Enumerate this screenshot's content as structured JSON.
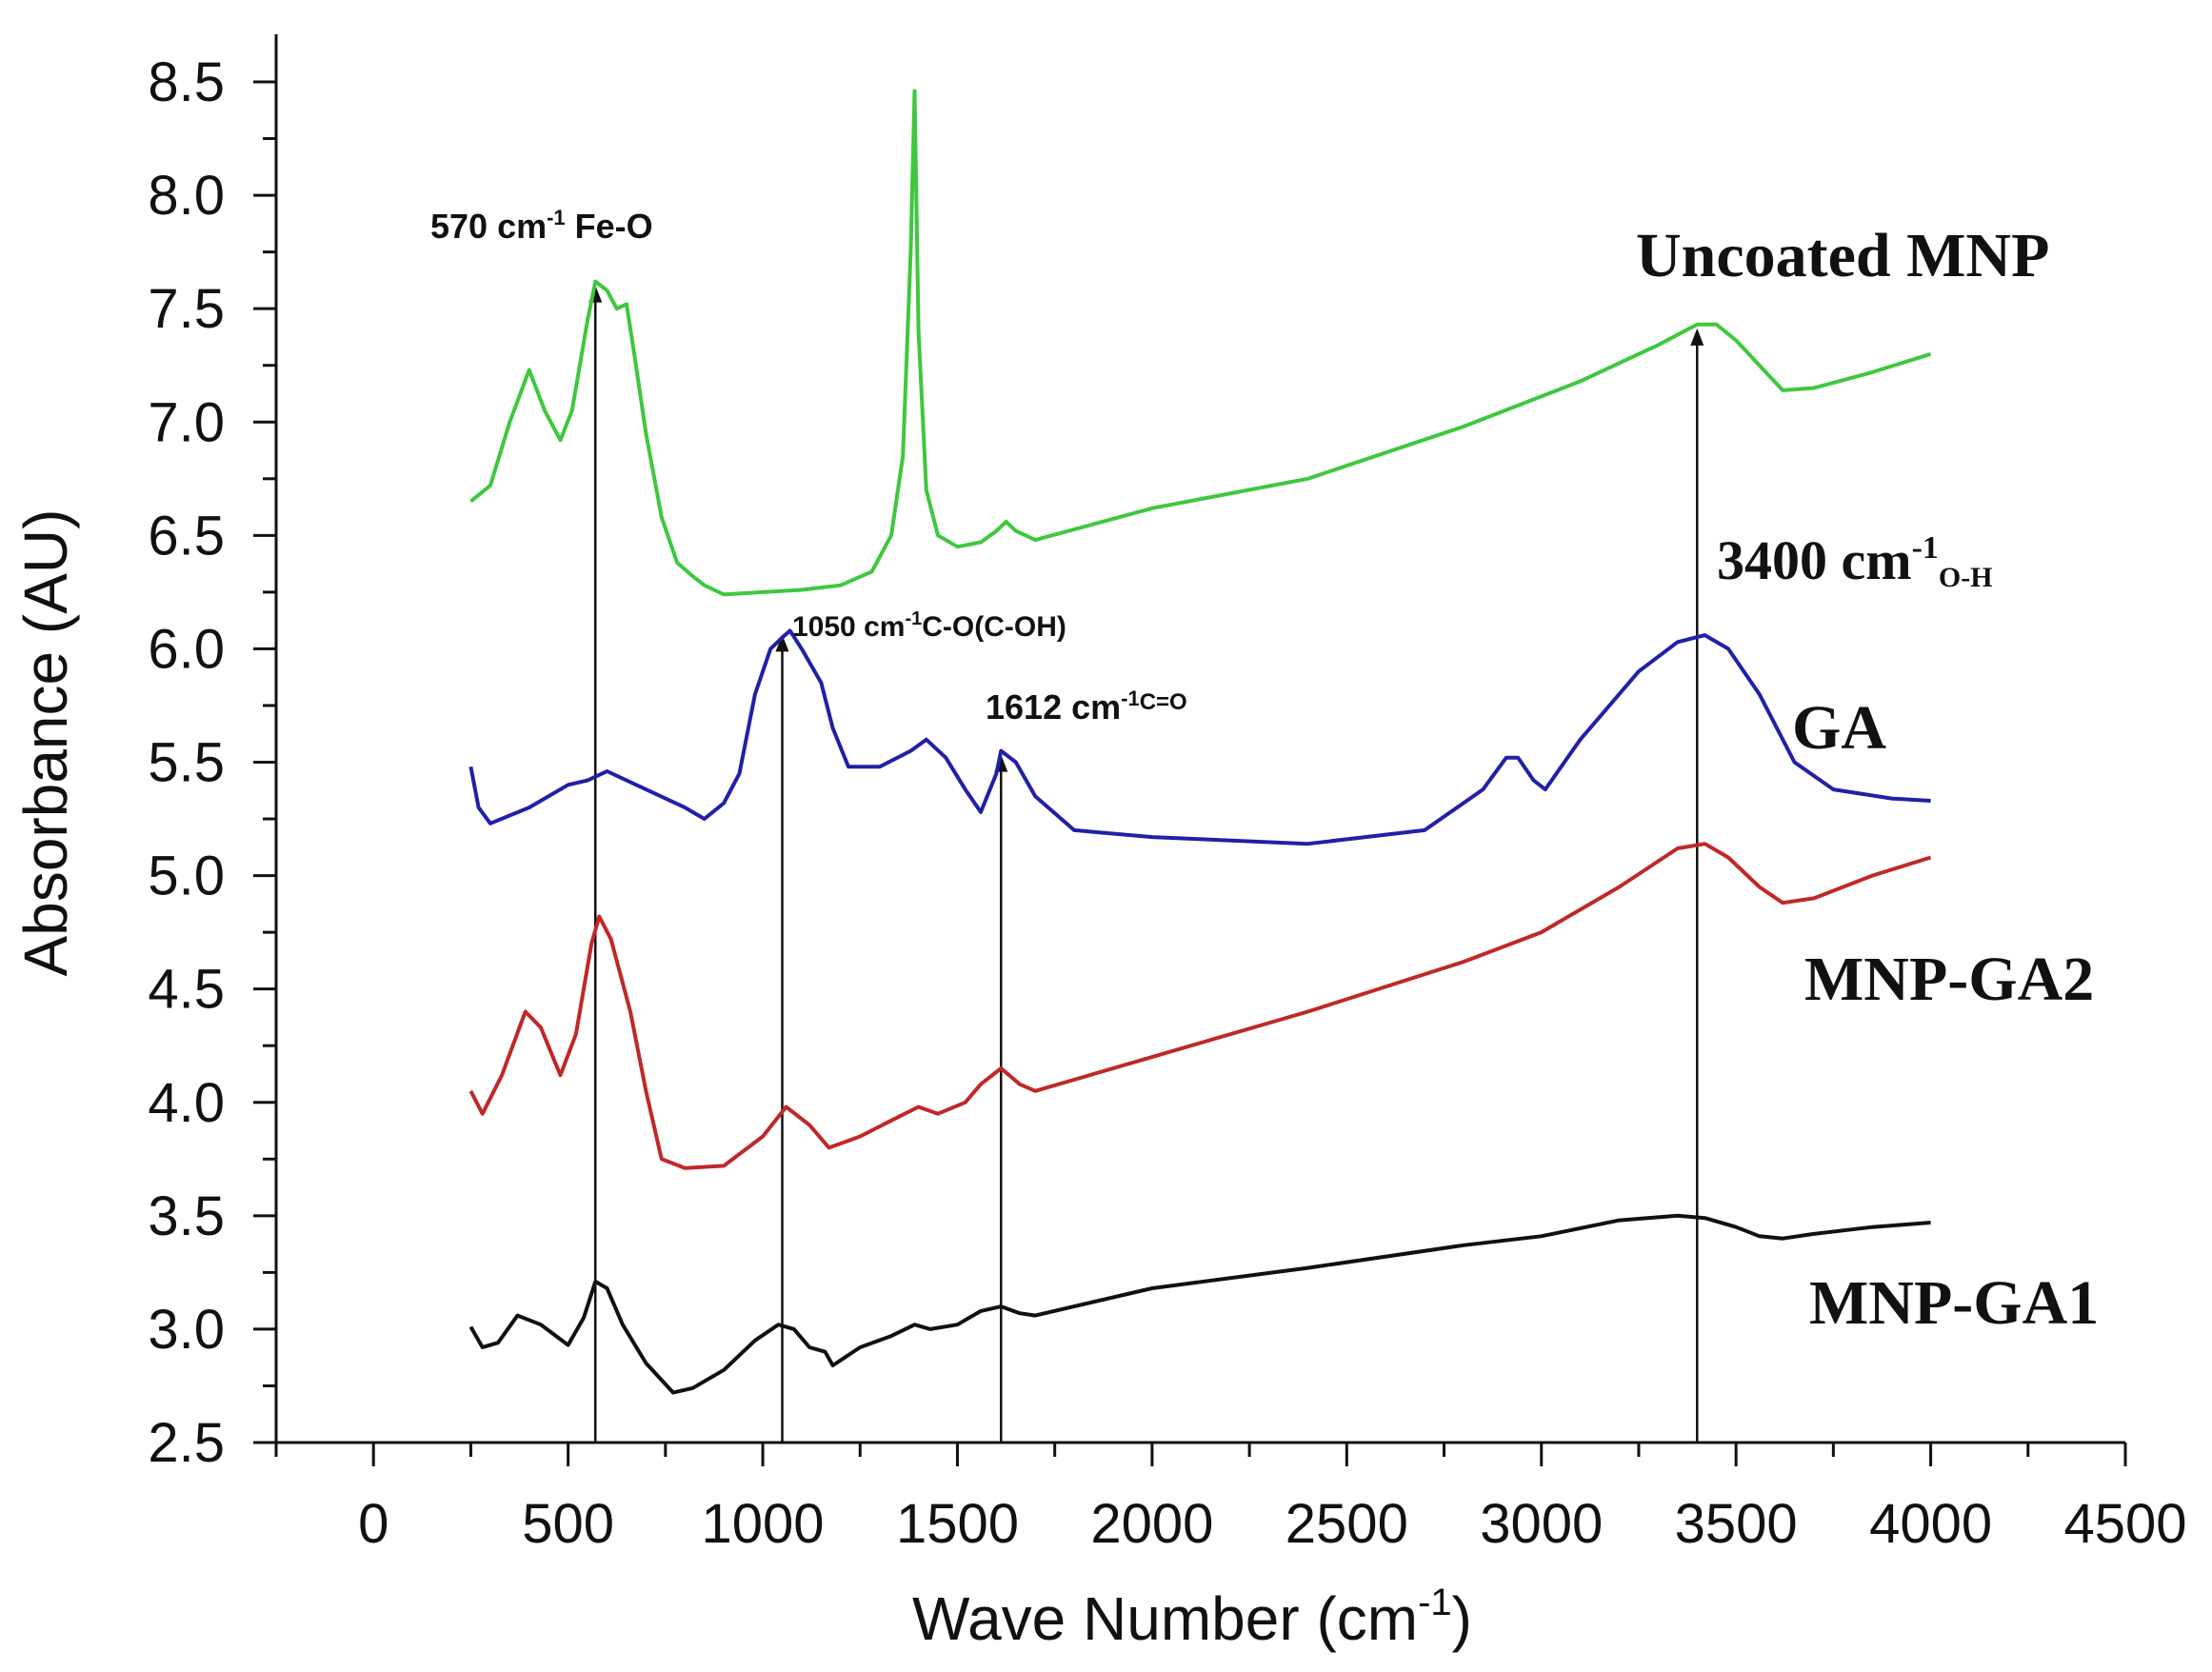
{
  "chart_data": {
    "type": "line",
    "xlabel": "Wave Number (cm",
    "xlabel_sup": "-1",
    "xlabel_end": ")",
    "ylabel": "Absorbance (AU)",
    "xlim": [
      -250,
      4500
    ],
    "ylim": [
      2.5,
      8.7
    ],
    "x_ticks": [
      0,
      500,
      1000,
      1500,
      2000,
      2500,
      3000,
      3500,
      4000,
      4500
    ],
    "y_ticks": [
      "2.5",
      "3.0",
      "3.5",
      "4.0",
      "4.5",
      "5.0",
      "5.5",
      "6.0",
      "6.5",
      "7.0",
      "7.5",
      "8.0",
      "8.5"
    ],
    "grid": false,
    "series": [
      {
        "name": "Uncoated MNP",
        "color": "#3ec83e",
        "points": [
          [
            250,
            6.65
          ],
          [
            300,
            6.72
          ],
          [
            350,
            7.0
          ],
          [
            400,
            7.23
          ],
          [
            440,
            7.05
          ],
          [
            480,
            6.92
          ],
          [
            510,
            7.05
          ],
          [
            550,
            7.45
          ],
          [
            570,
            7.62
          ],
          [
            600,
            7.58
          ],
          [
            625,
            7.5
          ],
          [
            650,
            7.52
          ],
          [
            670,
            7.3
          ],
          [
            700,
            6.95
          ],
          [
            740,
            6.58
          ],
          [
            780,
            6.38
          ],
          [
            820,
            6.32
          ],
          [
            850,
            6.28
          ],
          [
            900,
            6.24
          ],
          [
            1000,
            6.25
          ],
          [
            1100,
            6.26
          ],
          [
            1200,
            6.28
          ],
          [
            1280,
            6.34
          ],
          [
            1330,
            6.5
          ],
          [
            1360,
            6.85
          ],
          [
            1380,
            7.75
          ],
          [
            1390,
            8.46
          ],
          [
            1400,
            7.4
          ],
          [
            1420,
            6.7
          ],
          [
            1450,
            6.5
          ],
          [
            1500,
            6.45
          ],
          [
            1560,
            6.47
          ],
          [
            1600,
            6.52
          ],
          [
            1625,
            6.56
          ],
          [
            1650,
            6.52
          ],
          [
            1700,
            6.48
          ],
          [
            2000,
            6.62
          ],
          [
            2400,
            6.75
          ],
          [
            2800,
            6.98
          ],
          [
            3100,
            7.18
          ],
          [
            3300,
            7.34
          ],
          [
            3400,
            7.43
          ],
          [
            3450,
            7.43
          ],
          [
            3500,
            7.36
          ],
          [
            3560,
            7.25
          ],
          [
            3620,
            7.14
          ],
          [
            3700,
            7.15
          ],
          [
            3850,
            7.22
          ],
          [
            4000,
            7.3
          ]
        ]
      },
      {
        "name": "GA",
        "color": "#2020a8",
        "points": [
          [
            250,
            5.48
          ],
          [
            270,
            5.3
          ],
          [
            300,
            5.23
          ],
          [
            400,
            5.3
          ],
          [
            500,
            5.4
          ],
          [
            550,
            5.42
          ],
          [
            600,
            5.46
          ],
          [
            700,
            5.38
          ],
          [
            800,
            5.3
          ],
          [
            850,
            5.25
          ],
          [
            900,
            5.32
          ],
          [
            940,
            5.45
          ],
          [
            980,
            5.8
          ],
          [
            1020,
            6.0
          ],
          [
            1050,
            6.05
          ],
          [
            1070,
            6.08
          ],
          [
            1100,
            6.0
          ],
          [
            1150,
            5.85
          ],
          [
            1180,
            5.65
          ],
          [
            1220,
            5.48
          ],
          [
            1300,
            5.48
          ],
          [
            1380,
            5.55
          ],
          [
            1420,
            5.6
          ],
          [
            1470,
            5.52
          ],
          [
            1520,
            5.38
          ],
          [
            1560,
            5.28
          ],
          [
            1600,
            5.45
          ],
          [
            1612,
            5.55
          ],
          [
            1650,
            5.5
          ],
          [
            1700,
            5.35
          ],
          [
            1800,
            5.2
          ],
          [
            2000,
            5.17
          ],
          [
            2400,
            5.14
          ],
          [
            2700,
            5.2
          ],
          [
            2850,
            5.38
          ],
          [
            2910,
            5.52
          ],
          [
            2940,
            5.52
          ],
          [
            2980,
            5.42
          ],
          [
            3010,
            5.38
          ],
          [
            3100,
            5.6
          ],
          [
            3250,
            5.9
          ],
          [
            3350,
            6.03
          ],
          [
            3420,
            6.06
          ],
          [
            3480,
            6.0
          ],
          [
            3560,
            5.8
          ],
          [
            3650,
            5.5
          ],
          [
            3750,
            5.38
          ],
          [
            3900,
            5.34
          ],
          [
            4000,
            5.33
          ]
        ]
      },
      {
        "name": "MNP-GA2",
        "color": "#c02828",
        "points": [
          [
            250,
            4.05
          ],
          [
            280,
            3.95
          ],
          [
            330,
            4.12
          ],
          [
            390,
            4.4
          ],
          [
            430,
            4.33
          ],
          [
            480,
            4.12
          ],
          [
            520,
            4.3
          ],
          [
            560,
            4.7
          ],
          [
            580,
            4.82
          ],
          [
            610,
            4.72
          ],
          [
            660,
            4.4
          ],
          [
            700,
            4.05
          ],
          [
            740,
            3.75
          ],
          [
            800,
            3.71
          ],
          [
            900,
            3.72
          ],
          [
            1000,
            3.85
          ],
          [
            1060,
            3.98
          ],
          [
            1120,
            3.9
          ],
          [
            1170,
            3.8
          ],
          [
            1250,
            3.85
          ],
          [
            1330,
            3.92
          ],
          [
            1400,
            3.98
          ],
          [
            1450,
            3.95
          ],
          [
            1520,
            4.0
          ],
          [
            1560,
            4.08
          ],
          [
            1612,
            4.15
          ],
          [
            1660,
            4.08
          ],
          [
            1700,
            4.05
          ],
          [
            2000,
            4.2
          ],
          [
            2400,
            4.4
          ],
          [
            2800,
            4.62
          ],
          [
            3000,
            4.75
          ],
          [
            3200,
            4.95
          ],
          [
            3350,
            5.12
          ],
          [
            3420,
            5.14
          ],
          [
            3480,
            5.08
          ],
          [
            3560,
            4.95
          ],
          [
            3620,
            4.88
          ],
          [
            3700,
            4.9
          ],
          [
            3850,
            5.0
          ],
          [
            4000,
            5.08
          ]
        ]
      },
      {
        "name": "MNP-GA1",
        "color": "#111111",
        "points": [
          [
            250,
            3.01
          ],
          [
            280,
            2.92
          ],
          [
            320,
            2.94
          ],
          [
            370,
            3.06
          ],
          [
            430,
            3.02
          ],
          [
            500,
            2.93
          ],
          [
            540,
            3.05
          ],
          [
            570,
            3.21
          ],
          [
            600,
            3.18
          ],
          [
            640,
            3.02
          ],
          [
            700,
            2.85
          ],
          [
            770,
            2.72
          ],
          [
            820,
            2.74
          ],
          [
            900,
            2.82
          ],
          [
            980,
            2.95
          ],
          [
            1040,
            3.02
          ],
          [
            1080,
            3.0
          ],
          [
            1120,
            2.92
          ],
          [
            1160,
            2.9
          ],
          [
            1180,
            2.84
          ],
          [
            1250,
            2.92
          ],
          [
            1330,
            2.97
          ],
          [
            1390,
            3.02
          ],
          [
            1430,
            3.0
          ],
          [
            1500,
            3.02
          ],
          [
            1560,
            3.08
          ],
          [
            1612,
            3.1
          ],
          [
            1660,
            3.07
          ],
          [
            1700,
            3.06
          ],
          [
            2000,
            3.18
          ],
          [
            2400,
            3.27
          ],
          [
            2800,
            3.37
          ],
          [
            3000,
            3.41
          ],
          [
            3200,
            3.48
          ],
          [
            3350,
            3.5
          ],
          [
            3420,
            3.49
          ],
          [
            3500,
            3.45
          ],
          [
            3560,
            3.41
          ],
          [
            3620,
            3.4
          ],
          [
            3700,
            3.42
          ],
          [
            3850,
            3.45
          ],
          [
            4000,
            3.47
          ]
        ]
      }
    ],
    "series_labels": {
      "uncoated": "Uncoated MNP",
      "ga": "GA",
      "ga2": "MNP-GA2",
      "ga1": "MNP-GA1"
    },
    "annotations": {
      "fe_o": {
        "x": 570,
        "y_top": 7.62,
        "text_a": "570 cm",
        "sup": "-1",
        "text_b": " Fe-O"
      },
      "c_o": {
        "x": 1050,
        "y_top": 6.08,
        "text_a": "1050 cm",
        "sup": "-1",
        "text_b": "C-O(C-OH)"
      },
      "c_eq_o": {
        "x": 1612,
        "y_top": 5.55,
        "text_a": "1612 cm",
        "sup": "-1",
        "text_b": "C=O"
      },
      "o_h": {
        "x": 3400,
        "y_top": 7.43,
        "text_a": "3400 cm",
        "sup": "-1",
        "text_b": "O-H"
      }
    }
  }
}
